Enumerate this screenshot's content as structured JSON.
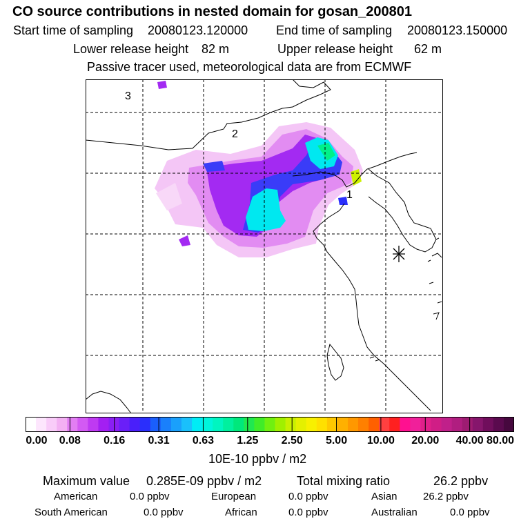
{
  "title": "CO  source contributions in nested domain for gosan_200801",
  "sampling": {
    "start_label": "Start time of sampling",
    "start_value": "20080123.120000",
    "end_label": "End time of sampling",
    "end_value": "20080123.150000"
  },
  "release": {
    "lower_label": "Lower release height",
    "lower_value": "82 m",
    "upper_label": "Upper release height",
    "upper_value": "62 m"
  },
  "tracer_note": "Passive tracer used, meteorological data are from ECMWF",
  "chart_data": {
    "type": "heatmap",
    "title": "CO  source contributions in nested domain for gosan_200801",
    "colorbar": {
      "ticks": [
        "0.00",
        "0.08",
        "0.16",
        "0.31",
        "0.63",
        "1.25",
        "2.50",
        "5.00",
        "10.00",
        "20.00",
        "40.00",
        "80.00"
      ],
      "unit_label": "10E-10 ppbv / m2",
      "colors": [
        "#ffffff",
        "#fde6fd",
        "#f9ccf9",
        "#f3b0f3",
        "#e27ef3",
        "#d35af3",
        "#bf3af2",
        "#a31ff2",
        "#8a1ff4",
        "#6a1ff8",
        "#4a1ffa",
        "#2a2ffc",
        "#1a5ffb",
        "#1a80fb",
        "#1aa0fb",
        "#1ac0fb",
        "#00ecf5",
        "#00f5dc",
        "#00f5c0",
        "#00f09e",
        "#00e87c",
        "#20e850",
        "#40ec28",
        "#70f010",
        "#a0f000",
        "#c8f000",
        "#e4f000",
        "#f8f000",
        "#ffe000",
        "#ffc800",
        "#ffb000",
        "#ff9800",
        "#ff8000",
        "#ff6000",
        "#ff4040",
        "#ff2020",
        "#ff1090",
        "#f0209a",
        "#e0208a",
        "#d01e86",
        "#c0208a",
        "#b01e80",
        "#9e1c72",
        "#86166c",
        "#700e5c",
        "#5a0a4e",
        "#46083e"
      ]
    },
    "grid_labels": [
      "1",
      "2",
      "3"
    ],
    "receptor": "Gosan"
  },
  "stats": {
    "max_label": "Maximum value",
    "max_value": "0.285E-09 ppbv / m2",
    "total_label": "Total mixing ratio",
    "total_value": "26.2 ppbv"
  },
  "regions": [
    {
      "name": "American",
      "value": "0.0 ppbv"
    },
    {
      "name": "European",
      "value": "0.0 ppbv"
    },
    {
      "name": "Asian",
      "value": "26.2 ppbv"
    },
    {
      "name": "South American",
      "value": "0.0 ppbv"
    },
    {
      "name": "African",
      "value": "0.0 ppbv"
    },
    {
      "name": "Australian",
      "value": "0.0 ppbv"
    }
  ]
}
